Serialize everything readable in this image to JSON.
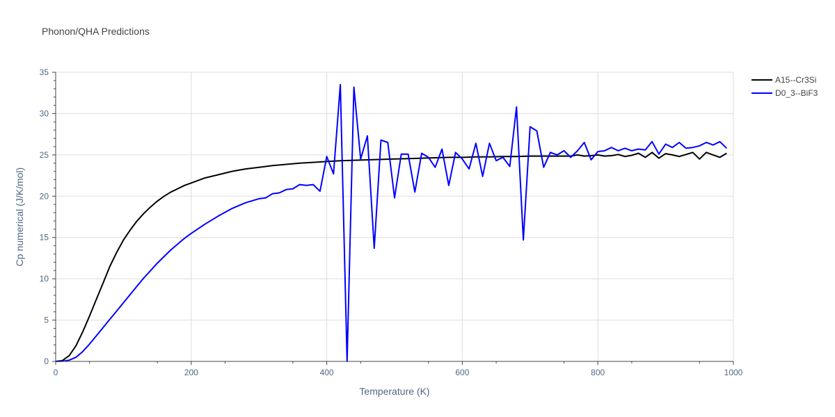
{
  "chart_data": {
    "type": "line",
    "title": "Phonon/QHA Predictions",
    "xlabel": "Temperature (K)",
    "ylabel": "Cp numerical (J/K/mol)",
    "xlim": [
      0,
      1000
    ],
    "ylim": [
      0,
      35
    ],
    "xticks": [
      0,
      200,
      400,
      600,
      800,
      1000
    ],
    "yticks": [
      0,
      5,
      10,
      15,
      20,
      25,
      30,
      35
    ],
    "grid": true,
    "legend_position": "top-right",
    "series": [
      {
        "name": "A15--Cr3Si",
        "color": "#000000",
        "x": [
          0,
          10,
          20,
          30,
          40,
          50,
          60,
          70,
          80,
          90,
          100,
          110,
          120,
          130,
          140,
          150,
          160,
          170,
          180,
          190,
          200,
          220,
          240,
          260,
          280,
          300,
          320,
          340,
          360,
          380,
          400,
          420,
          440,
          460,
          480,
          500,
          520,
          540,
          560,
          580,
          600,
          620,
          640,
          660,
          680,
          700,
          720,
          740,
          760,
          770,
          780,
          790,
          800,
          810,
          820,
          830,
          840,
          850,
          860,
          870,
          880,
          890,
          900,
          910,
          920,
          930,
          940,
          950,
          960,
          970,
          980,
          990
        ],
        "y": [
          0,
          0.1,
          0.7,
          1.9,
          3.6,
          5.5,
          7.5,
          9.5,
          11.5,
          13.2,
          14.7,
          15.9,
          17.0,
          17.9,
          18.7,
          19.4,
          20.0,
          20.5,
          20.9,
          21.3,
          21.6,
          22.2,
          22.6,
          23.0,
          23.3,
          23.5,
          23.7,
          23.85,
          24.0,
          24.1,
          24.2,
          24.3,
          24.35,
          24.4,
          24.45,
          24.5,
          24.55,
          24.6,
          24.65,
          24.7,
          24.7,
          24.75,
          24.75,
          24.8,
          24.8,
          24.85,
          24.85,
          24.85,
          24.85,
          25.0,
          24.85,
          24.9,
          25.0,
          24.85,
          24.9,
          25.05,
          24.8,
          24.95,
          25.2,
          24.7,
          25.3,
          24.6,
          25.15,
          25.0,
          24.8,
          25.05,
          25.3,
          24.5,
          25.3,
          25.0,
          24.7,
          25.2
        ]
      },
      {
        "name": "D0_3--BiF3",
        "color": "#0000ff",
        "x": [
          0,
          10,
          20,
          30,
          40,
          50,
          60,
          70,
          80,
          90,
          100,
          110,
          120,
          130,
          140,
          150,
          160,
          170,
          180,
          190,
          200,
          220,
          240,
          260,
          280,
          300,
          310,
          320,
          330,
          340,
          350,
          360,
          370,
          380,
          390,
          400,
          410,
          420,
          430,
          440,
          450,
          460,
          470,
          480,
          490,
          500,
          510,
          520,
          530,
          540,
          550,
          560,
          570,
          580,
          590,
          600,
          610,
          620,
          630,
          640,
          650,
          660,
          670,
          680,
          690,
          700,
          710,
          720,
          730,
          740,
          750,
          760,
          770,
          780,
          790,
          800,
          810,
          820,
          830,
          840,
          850,
          860,
          870,
          880,
          890,
          900,
          910,
          920,
          930,
          940,
          950,
          960,
          970,
          980,
          990
        ],
        "y": [
          0,
          0.02,
          0.15,
          0.5,
          1.2,
          2.1,
          3.1,
          4.1,
          5.1,
          6.1,
          7.1,
          8.1,
          9.1,
          10.1,
          11.0,
          11.9,
          12.7,
          13.5,
          14.2,
          14.9,
          15.5,
          16.6,
          17.6,
          18.5,
          19.2,
          19.7,
          19.8,
          20.3,
          20.4,
          20.8,
          20.9,
          21.4,
          21.3,
          21.4,
          20.6,
          24.8,
          22.7,
          33.5,
          0,
          33.2,
          24.5,
          27.3,
          13.7,
          26.8,
          26.5,
          19.8,
          25.1,
          25.1,
          20.5,
          25.2,
          24.7,
          23.5,
          25.7,
          21.3,
          25.3,
          24.5,
          23.3,
          26.4,
          22.4,
          26.4,
          24.3,
          24.7,
          23.6,
          30.8,
          14.7,
          28.4,
          27.9,
          23.5,
          25.3,
          25.0,
          25.5,
          24.7,
          25.5,
          26.5,
          24.4,
          25.4,
          25.5,
          25.9,
          25.5,
          25.8,
          25.5,
          25.7,
          25.6,
          26.6,
          25.1,
          26.3,
          25.9,
          26.5,
          25.8,
          25.9,
          26.1,
          26.5,
          26.2,
          26.6,
          25.8
        ]
      }
    ]
  }
}
